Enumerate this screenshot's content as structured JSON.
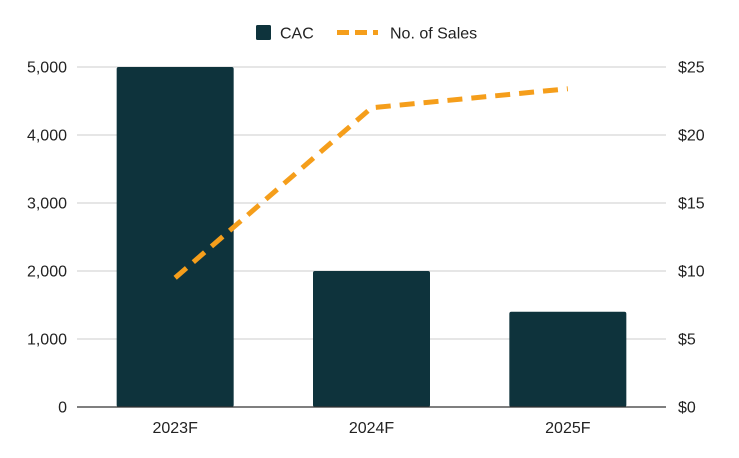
{
  "chart_data": {
    "type": "bar",
    "categories": [
      "2023F",
      "2024F",
      "2025F"
    ],
    "series": [
      {
        "name": "CAC",
        "type": "bar",
        "axis": "left",
        "color": "#0e333c",
        "values": [
          5000,
          2000,
          1400
        ]
      },
      {
        "name": "No. of Sales",
        "type": "line",
        "line_style": "dashed",
        "axis": "right",
        "color": "#f59e1b",
        "values": [
          9.5,
          22,
          23.4
        ]
      }
    ],
    "y_left": {
      "ylim": [
        0,
        5000
      ],
      "ticks": [
        0,
        1000,
        2000,
        3000,
        4000,
        5000
      ],
      "tick_labels": [
        "0",
        "1,000",
        "2,000",
        "3,000",
        "4,000",
        "5,000"
      ]
    },
    "y_right": {
      "ylim": [
        0,
        25
      ],
      "ticks": [
        0,
        5,
        10,
        15,
        20,
        25
      ],
      "tick_labels": [
        "$0",
        "$5",
        "$10",
        "$15",
        "$20",
        "$25"
      ]
    },
    "grid": true,
    "legend_position": "top-center",
    "title": "",
    "xlabel": "",
    "ylabel": ""
  }
}
